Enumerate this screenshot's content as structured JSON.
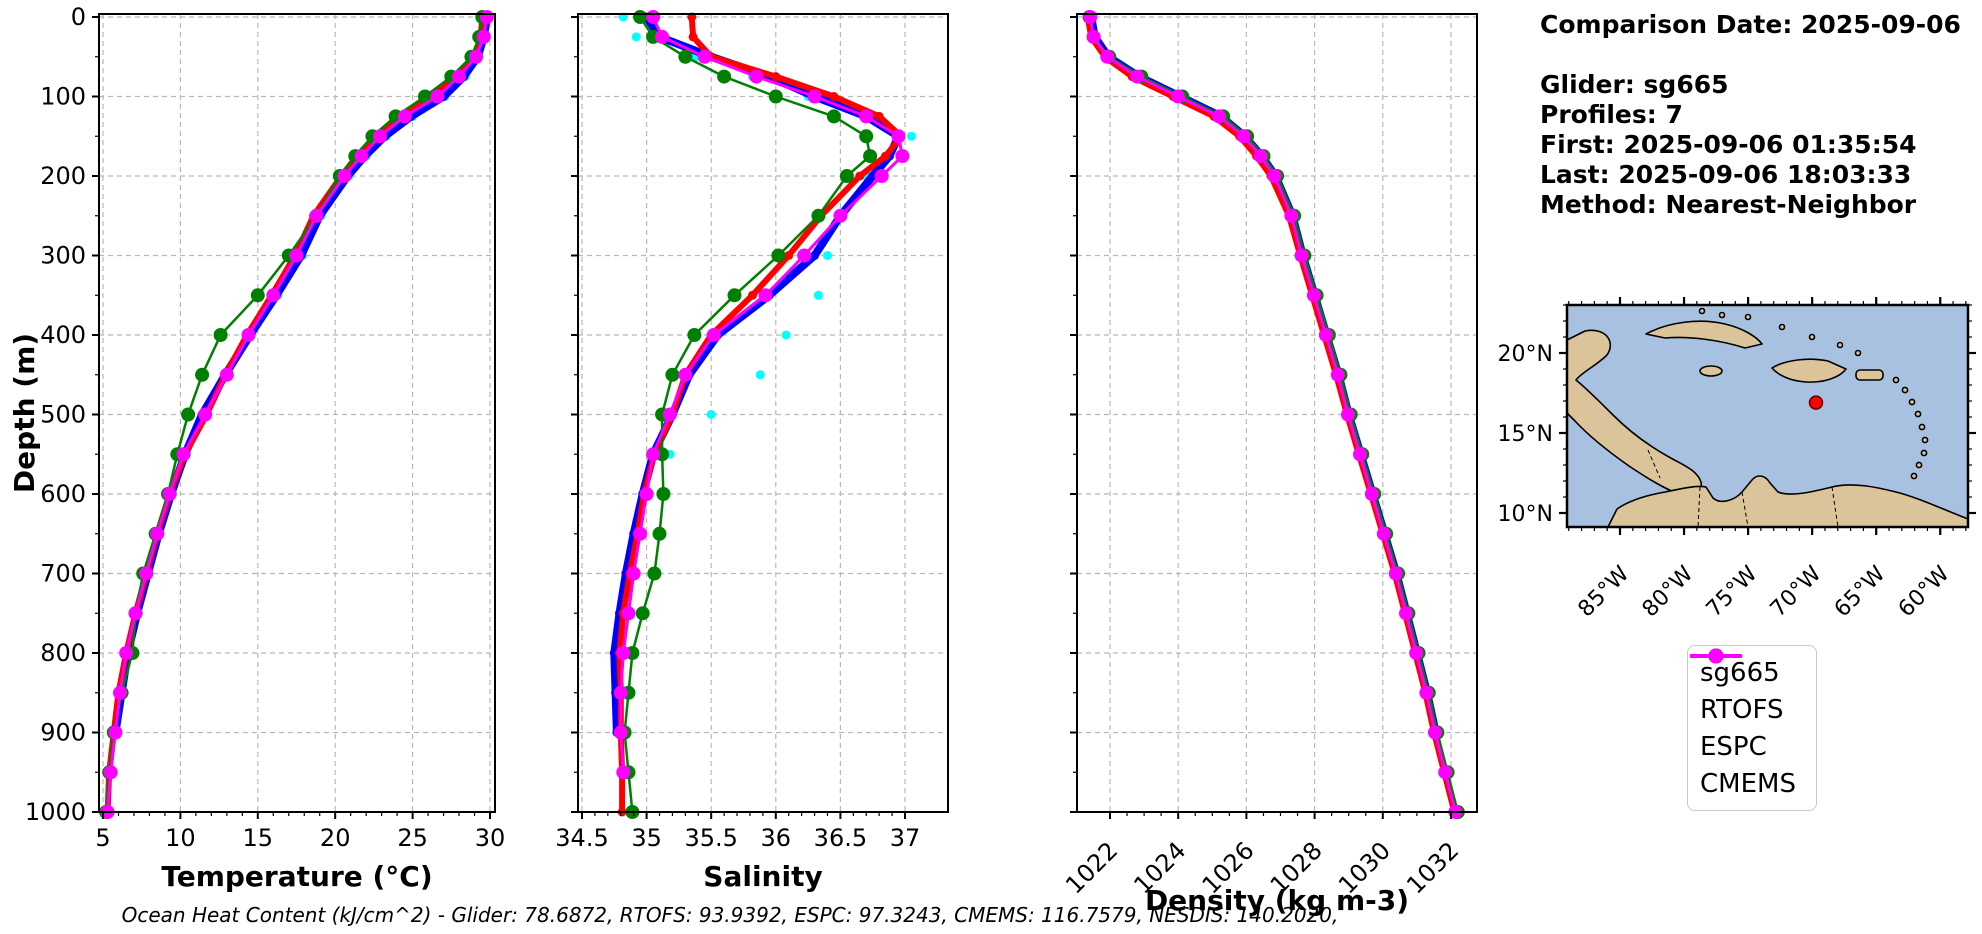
{
  "info": {
    "lines": [
      "Comparison Date: 2025-09-06",
      "",
      "Glider: sg665",
      "Profiles: 7",
      "First: 2025-09-06 01:35:54",
      "Last: 2025-09-06 18:03:33",
      "Method: Nearest-Neighbor"
    ]
  },
  "footer": {
    "text": "Ocean Heat Content (kJ/cm^2) - Glider: 78.6872,  RTOFS: 93.9392,  ESPC: 97.3243,  CMEMS: 116.7579,  NESDIS: 140.2020,"
  },
  "legend": {
    "position": "lower right",
    "items": [
      {
        "label": "sg665",
        "color": "#0000ff"
      },
      {
        "label": "RTOFS",
        "color": "#ff0000"
      },
      {
        "label": "ESPC",
        "color": "#008000"
      },
      {
        "label": "CMEMS",
        "color": "#ff00ff"
      }
    ]
  },
  "map": {
    "ocean_color": "#a8c1e0",
    "land_color": "#dcc49a",
    "lat_ticks": [
      {
        "label": "20°N",
        "lat": 20
      },
      {
        "label": "15°N",
        "lat": 15
      },
      {
        "label": "10°N",
        "lat": 10
      }
    ],
    "lon_ticks": [
      {
        "label": "85°W",
        "lon": -85
      },
      {
        "label": "80°W",
        "lon": -80
      },
      {
        "label": "75°W",
        "lon": -75
      },
      {
        "label": "70°W",
        "lon": -70
      },
      {
        "label": "65°W",
        "lon": -65
      },
      {
        "label": "60°W",
        "lon": -60
      }
    ],
    "extent": {
      "lon_min": -89.2,
      "lon_max": -57.9,
      "lat_min": 9.1,
      "lat_max": 23.0
    },
    "marker": {
      "lon": -69.7,
      "lat": 16.9,
      "color": "#ff0000"
    }
  },
  "chart_data": [
    {
      "type": "line",
      "xlabel": "Temperature (°C)",
      "ylabel": "Depth (m)",
      "xticks": [
        5,
        10,
        15,
        20,
        25,
        30
      ],
      "yticks": [
        0,
        100,
        200,
        300,
        400,
        500,
        600,
        700,
        800,
        900,
        1000
      ],
      "xlim": [
        4.74,
        30.32
      ],
      "ylim": [
        1000,
        0
      ],
      "grid": true,
      "depths": [
        0,
        25,
        50,
        75,
        100,
        125,
        150,
        175,
        200,
        250,
        300,
        350,
        400,
        450,
        500,
        550,
        600,
        650,
        700,
        750,
        800,
        850,
        900,
        950,
        1000
      ],
      "series": [
        {
          "name": "sg665",
          "color": "#0000ff",
          "values": [
            29.8,
            29.6,
            29.2,
            28.3,
            27.0,
            24.9,
            23.2,
            21.9,
            20.8,
            19.0,
            17.8,
            16.2,
            14.5,
            12.9,
            11.4,
            10.3,
            9.4,
            8.6,
            7.9,
            7.2,
            6.6,
            6.2,
            5.8,
            null,
            null
          ]
        },
        {
          "name": "RTOFS",
          "color": "#ff0000",
          "values": [
            29.5,
            29.4,
            29.0,
            27.8,
            26.2,
            24.1,
            22.6,
            21.4,
            20.4,
            18.6,
            17.4,
            15.9,
            14.3,
            12.9,
            11.7,
            10.3,
            9.3,
            8.5,
            7.8,
            7.1,
            6.5,
            6.0,
            5.7,
            5.4,
            5.3
          ]
        },
        {
          "name": "ESPC",
          "color": "#008000",
          "values": [
            29.5,
            29.3,
            28.8,
            27.5,
            25.8,
            23.9,
            22.4,
            21.3,
            20.3,
            18.8,
            17.0,
            15.0,
            12.6,
            11.4,
            10.5,
            9.8,
            9.2,
            8.4,
            7.6,
            7.1,
            6.9,
            6.2,
            5.7,
            5.4,
            5.2
          ]
        },
        {
          "name": "CMEMS",
          "color": "#ff00ff",
          "values": [
            29.8,
            29.6,
            29.1,
            28.0,
            26.6,
            24.5,
            22.9,
            21.7,
            20.6,
            18.8,
            17.5,
            16.0,
            14.4,
            13.0,
            11.6,
            10.2,
            9.3,
            8.5,
            7.8,
            7.1,
            6.5,
            6.1,
            5.8,
            5.5,
            5.3
          ]
        },
        {
          "name": "NESDIS",
          "color": "#00ffff",
          "values": [
            29.9,
            29.7,
            29.3,
            28.4,
            27.1,
            25.0,
            23.3,
            22.0,
            20.9,
            19.1,
            17.9,
            16.3,
            14.6,
            13.0,
            11.5,
            10.4,
            9.5,
            8.7,
            8.0,
            7.3,
            6.7,
            6.3,
            5.9,
            null,
            null
          ]
        }
      ]
    },
    {
      "type": "line",
      "xlabel": "Salinity",
      "ylabel": "Depth (m)",
      "xticks": [
        34.5,
        35.0,
        35.5,
        36.0,
        36.5,
        37.0
      ],
      "yticks": [
        0,
        100,
        200,
        300,
        400,
        500,
        600,
        700,
        800,
        900,
        1000
      ],
      "xlim": [
        34.47,
        37.33
      ],
      "ylim": [
        1000,
        0
      ],
      "grid": true,
      "depths": [
        0,
        25,
        50,
        75,
        100,
        125,
        150,
        175,
        200,
        250,
        300,
        350,
        400,
        450,
        500,
        550,
        600,
        650,
        700,
        750,
        800,
        850,
        900,
        950,
        1000
      ],
      "series": [
        {
          "name": "sg665",
          "color": "#0000ff",
          "values": [
            35.0,
            35.1,
            35.5,
            35.95,
            36.3,
            36.7,
            36.95,
            36.88,
            36.75,
            36.5,
            36.3,
            35.95,
            35.55,
            35.33,
            35.2,
            35.05,
            34.97,
            34.9,
            34.84,
            34.79,
            34.75,
            34.76,
            34.77,
            null,
            null
          ]
        },
        {
          "name": "RTOFS",
          "color": "#ff0000",
          "values": [
            35.35,
            35.36,
            35.5,
            36.0,
            36.45,
            36.8,
            36.97,
            36.85,
            36.65,
            36.35,
            36.1,
            35.82,
            35.5,
            35.3,
            35.2,
            35.06,
            34.98,
            34.93,
            34.87,
            34.82,
            34.79,
            34.8,
            34.8,
            34.81,
            34.81
          ]
        },
        {
          "name": "ESPC",
          "color": "#008000",
          "values": [
            34.95,
            35.05,
            35.3,
            35.6,
            36.0,
            36.45,
            36.7,
            36.73,
            36.55,
            36.33,
            36.02,
            35.68,
            35.37,
            35.2,
            35.12,
            35.12,
            35.13,
            35.1,
            35.06,
            34.97,
            34.89,
            34.86,
            34.83,
            34.86,
            34.89
          ]
        },
        {
          "name": "CMEMS",
          "color": "#ff00ff",
          "values": [
            35.05,
            35.12,
            35.45,
            35.85,
            36.3,
            36.7,
            36.95,
            36.98,
            36.82,
            36.5,
            36.22,
            35.92,
            35.52,
            35.3,
            35.18,
            35.05,
            35.0,
            34.95,
            34.9,
            34.86,
            34.82,
            34.8,
            34.8,
            34.82,
            null
          ]
        },
        {
          "name": "NESDIS",
          "color": "#00ffff",
          "values": [
            34.82,
            34.92,
            35.38,
            35.82,
            36.25,
            36.78,
            37.05,
            36.98,
            36.7,
            36.52,
            36.4,
            36.33,
            36.08,
            35.88,
            35.5,
            35.18,
            35.02,
            34.94,
            34.87,
            34.81,
            34.77,
            34.78,
            34.79,
            null,
            null
          ]
        }
      ]
    },
    {
      "type": "line",
      "xlabel": "Density (kg m-3)",
      "ylabel": "Depth (m)",
      "xticks": [
        1022,
        1024,
        1026,
        1028,
        1030,
        1032
      ],
      "yticks": [
        0,
        100,
        200,
        300,
        400,
        500,
        600,
        700,
        800,
        900,
        1000
      ],
      "xlim": [
        1021.03,
        1032.76
      ],
      "ylim": [
        1000,
        0
      ],
      "grid": true,
      "xtick_rotation": 45,
      "depths": [
        0,
        25,
        50,
        75,
        100,
        125,
        150,
        175,
        200,
        250,
        300,
        350,
        400,
        450,
        500,
        550,
        600,
        650,
        700,
        750,
        800,
        850,
        900,
        950,
        1000
      ],
      "series": [
        {
          "name": "sg665",
          "color": "#0000ff",
          "values": [
            1021.45,
            1021.55,
            1021.95,
            1022.85,
            1024.05,
            1025.25,
            1025.95,
            1026.45,
            1026.85,
            1027.35,
            1027.65,
            1028.0,
            1028.35,
            1028.7,
            1029.0,
            1029.35,
            1029.7,
            1030.05,
            1030.4,
            1030.7,
            1031.0,
            1031.3,
            1031.55,
            null,
            null
          ]
        },
        {
          "name": "RTOFS",
          "color": "#ff0000",
          "values": [
            1021.35,
            1021.45,
            1021.85,
            1022.65,
            1023.85,
            1025.05,
            1025.8,
            1026.3,
            1026.72,
            1027.25,
            1027.58,
            1027.93,
            1028.28,
            1028.63,
            1028.95,
            1029.3,
            1029.65,
            1030.0,
            1030.35,
            1030.65,
            1030.95,
            1031.25,
            1031.5,
            1031.8,
            1032.1
          ]
        },
        {
          "name": "ESPC",
          "color": "#008000",
          "values": [
            1021.4,
            1021.52,
            1021.98,
            1022.92,
            1024.12,
            1025.32,
            1026.02,
            1026.5,
            1026.9,
            1027.4,
            1027.7,
            1028.06,
            1028.42,
            1028.76,
            1029.06,
            1029.4,
            1029.75,
            1030.1,
            1030.45,
            1030.75,
            1031.05,
            1031.35,
            1031.6,
            1031.9,
            1032.2
          ]
        },
        {
          "name": "CMEMS",
          "color": "#ff00ff",
          "values": [
            1021.42,
            1021.52,
            1021.92,
            1022.8,
            1024.0,
            1025.2,
            1025.92,
            1026.42,
            1026.82,
            1027.32,
            1027.62,
            1027.98,
            1028.33,
            1028.68,
            1028.98,
            1029.33,
            1029.68,
            1030.03,
            1030.38,
            1030.68,
            1030.98,
            1031.28,
            1031.53,
            1031.83,
            1032.13
          ]
        },
        {
          "name": "NESDIS",
          "color": "#00ffff",
          "values": [
            1021.5,
            1021.6,
            1022.0,
            1022.9,
            1024.1,
            1025.3,
            1026.0,
            1026.5,
            1026.9,
            1027.4,
            1027.72,
            1028.1,
            1028.45,
            1028.78,
            1029.05,
            1029.4,
            1029.74,
            1030.08,
            1030.43,
            1030.73,
            1031.03,
            1031.33,
            1031.58,
            null,
            null
          ]
        }
      ]
    }
  ]
}
